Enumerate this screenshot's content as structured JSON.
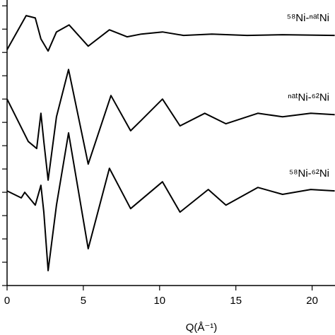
{
  "chart_data": {
    "type": "line",
    "xlabel": "Q(Å⁻¹)",
    "xlim": [
      0,
      21.5
    ],
    "xticks": [
      0,
      5,
      10,
      15,
      20
    ],
    "ylim": [
      0,
      12.25
    ],
    "yticks": [
      0,
      1,
      2,
      3,
      4,
      5,
      6,
      7,
      8,
      9,
      10,
      11,
      12
    ],
    "series": [
      {
        "name": "⁵⁸Ni-ⁿᵃᵗNi",
        "color": "#000000",
        "x": [
          0,
          1.25,
          1.85,
          2.22,
          2.69,
          3.24,
          4.07,
          5.32,
          6.71,
          7.87,
          8.8,
          10.19,
          11.57,
          13.43,
          15.74,
          18.06,
          21.48
        ],
        "values": [
          10.12,
          11.58,
          11.48,
          10.58,
          10.06,
          10.88,
          11.18,
          10.27,
          10.97,
          10.67,
          10.79,
          10.88,
          10.73,
          10.79,
          10.73,
          10.76,
          10.73
        ]
      },
      {
        "name": "ⁿᵃᵗNi-⁶²Ni",
        "color": "#000000",
        "x": [
          0,
          1.39,
          1.94,
          2.22,
          2.41,
          2.69,
          3.24,
          4.03,
          5.32,
          6.81,
          8.1,
          8.8,
          10.19,
          11.34,
          12.96,
          14.35,
          16.44,
          18.06,
          19.91,
          21.48
        ],
        "values": [
          8,
          6.18,
          5.88,
          7.39,
          6.18,
          4.52,
          7.24,
          9.27,
          5.21,
          8.15,
          6.64,
          7.09,
          8,
          6.85,
          7.39,
          6.94,
          7.39,
          7.24,
          7.39,
          7.33
        ]
      },
      {
        "name": "⁵⁸Ni-⁶²Ni",
        "color": "#000000",
        "x": [
          0,
          0.93,
          1.16,
          1.85,
          2.22,
          2.41,
          2.69,
          3.24,
          4.03,
          5.32,
          6.71,
          8.1,
          10.19,
          11.34,
          13.19,
          14.35,
          16.44,
          18.06,
          19.91,
          21.48
        ],
        "values": [
          4.06,
          3.76,
          4.0,
          3.45,
          4.3,
          3.15,
          0.64,
          3.45,
          6.55,
          1.58,
          5.03,
          3.3,
          4.45,
          3.15,
          4.12,
          3.45,
          4.21,
          3.91,
          4.12,
          4.06
        ]
      }
    ]
  }
}
